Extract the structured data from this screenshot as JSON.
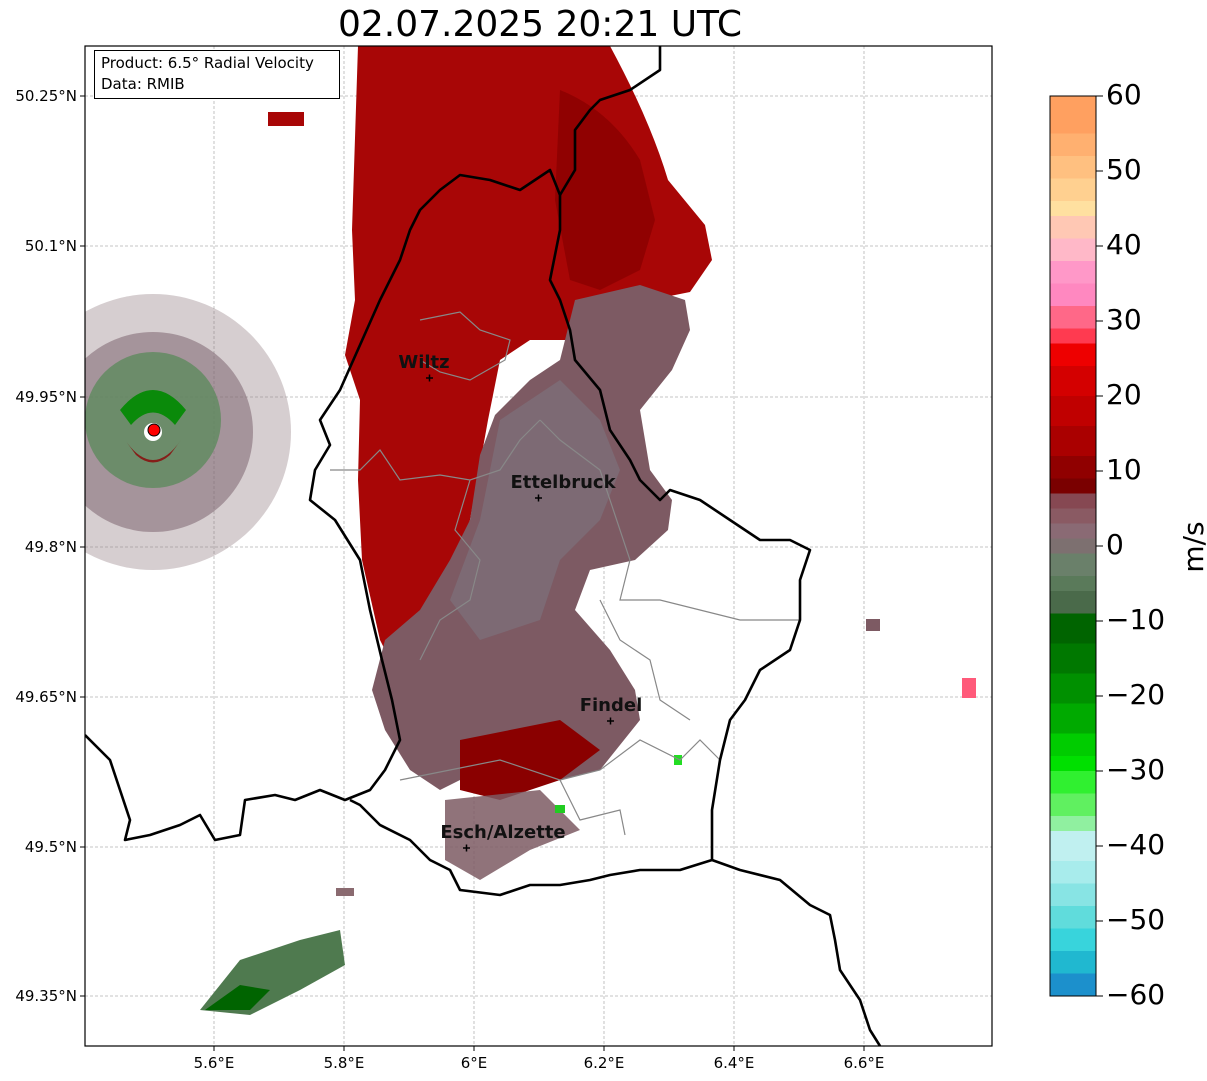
{
  "title": "02.07.2025 20:21 UTC",
  "info": {
    "product": "Product: 6.5° Radial Velocity",
    "data": "Data: RMIB"
  },
  "map": {
    "lon_ticks": [
      "5.6°E",
      "5.8°E",
      "6°E",
      "6.2°E",
      "6.4°E",
      "6.6°E"
    ],
    "lat_ticks": [
      "50.25°N",
      "50.1°N",
      "49.95°N",
      "49.8°N",
      "49.65°N",
      "49.5°N",
      "49.35°N"
    ],
    "cities": [
      "Wiltz",
      "Ettelbruck",
      "Findel",
      "Esch/Alzette"
    ],
    "radar_marker_color": "#ff0000"
  },
  "colorbar": {
    "label": "m/s",
    "ticks": [
      "60",
      "50",
      "40",
      "30",
      "20",
      "10",
      "0",
      "−10",
      "−20",
      "−30",
      "−40",
      "−50",
      "−60"
    ],
    "range": [
      -60,
      60
    ]
  },
  "colors": {
    "approach_green": "#007a00",
    "receding_red": "#a50000",
    "near_zero": "#7d6570"
  }
}
